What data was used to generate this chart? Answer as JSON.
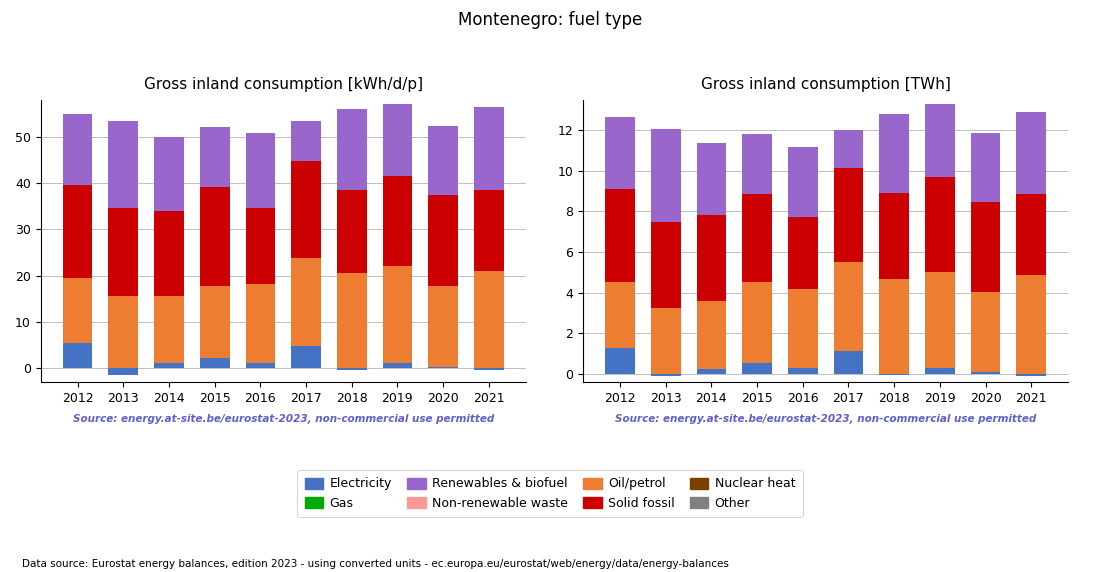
{
  "years": [
    2012,
    2013,
    2014,
    2015,
    2016,
    2017,
    2018,
    2019,
    2020,
    2021
  ],
  "title": "Montenegro: fuel type",
  "left_title": "Gross inland consumption [kWh/d/p]",
  "right_title": "Gross inland consumption [TWh]",
  "source_text": "Source: energy.at-site.be/eurostat-2023, non-commercial use permitted",
  "footer_text": "Data source: Eurostat energy balances, edition 2023 - using converted units - ec.europa.eu/eurostat/web/energy/data/energy-balances",
  "categories": [
    "Electricity",
    "Oil/petrol",
    "Solid fossil",
    "Renewables & biofuel",
    "Gas",
    "Nuclear heat",
    "Non-renewable waste",
    "Other"
  ],
  "colors": [
    "#4472c4",
    "#ed7d31",
    "#cc0000",
    "#9966cc",
    "#00aa00",
    "#7b3f00",
    "#ff9999",
    "#808080"
  ],
  "kwhd": {
    "Electricity": [
      5.5,
      -1.5,
      1.0,
      2.2,
      1.2,
      4.8,
      -0.5,
      1.0,
      0.3,
      -0.5
    ],
    "Oil/petrol": [
      14.0,
      15.5,
      14.5,
      15.5,
      17.0,
      19.0,
      20.5,
      21.0,
      17.5,
      21.0
    ],
    "Solid fossil": [
      20.0,
      19.0,
      18.5,
      21.5,
      16.5,
      21.0,
      18.0,
      19.5,
      19.5,
      17.5
    ],
    "Renewables & biofuel": [
      15.5,
      19.0,
      16.0,
      13.0,
      16.0,
      8.5,
      17.5,
      15.5,
      15.0,
      18.0
    ],
    "Gas": [
      0.0,
      0.0,
      0.0,
      0.0,
      0.0,
      0.0,
      0.0,
      0.0,
      0.0,
      0.0
    ],
    "Nuclear heat": [
      0.0,
      0.0,
      0.0,
      0.0,
      0.0,
      0.0,
      0.0,
      0.0,
      0.0,
      0.0
    ],
    "Non-renewable waste": [
      0.0,
      0.0,
      0.0,
      0.0,
      0.0,
      0.0,
      0.0,
      0.0,
      0.0,
      0.0
    ],
    "Other": [
      0.0,
      0.0,
      0.0,
      0.0,
      0.0,
      0.0,
      0.0,
      0.0,
      0.0,
      0.0
    ]
  },
  "twh": {
    "Electricity": [
      1.25,
      -0.12,
      0.23,
      0.55,
      0.3,
      1.1,
      -0.07,
      0.27,
      0.07,
      -0.1
    ],
    "Oil/petrol": [
      3.25,
      3.22,
      3.35,
      3.95,
      3.9,
      4.42,
      4.65,
      4.75,
      3.95,
      4.85
    ],
    "Solid fossil": [
      4.6,
      4.25,
      4.22,
      4.35,
      3.5,
      4.6,
      4.25,
      4.65,
      4.45,
      4.0
    ],
    "Renewables & biofuel": [
      3.55,
      4.6,
      3.55,
      2.95,
      3.45,
      1.9,
      3.9,
      3.6,
      3.4,
      4.05
    ],
    "Gas": [
      0.0,
      0.0,
      0.0,
      0.0,
      0.0,
      0.0,
      0.0,
      0.0,
      0.0,
      0.0
    ],
    "Nuclear heat": [
      0.0,
      0.0,
      0.0,
      0.0,
      0.0,
      0.0,
      0.0,
      0.0,
      0.0,
      0.0
    ],
    "Non-renewable waste": [
      0.0,
      0.0,
      0.0,
      0.0,
      0.0,
      0.0,
      0.0,
      0.0,
      0.0,
      0.0
    ],
    "Other": [
      0.0,
      0.0,
      0.0,
      0.0,
      0.0,
      0.0,
      0.0,
      0.0,
      0.0,
      0.0
    ]
  },
  "legend_row1": [
    "Electricity",
    "Gas",
    "Renewables & biofuel",
    "Non-renewable waste"
  ],
  "legend_row2": [
    "Oil/petrol",
    "Solid fossil",
    "Nuclear heat",
    "Other"
  ],
  "source_color": "#6060cc",
  "background_color": "#ffffff"
}
